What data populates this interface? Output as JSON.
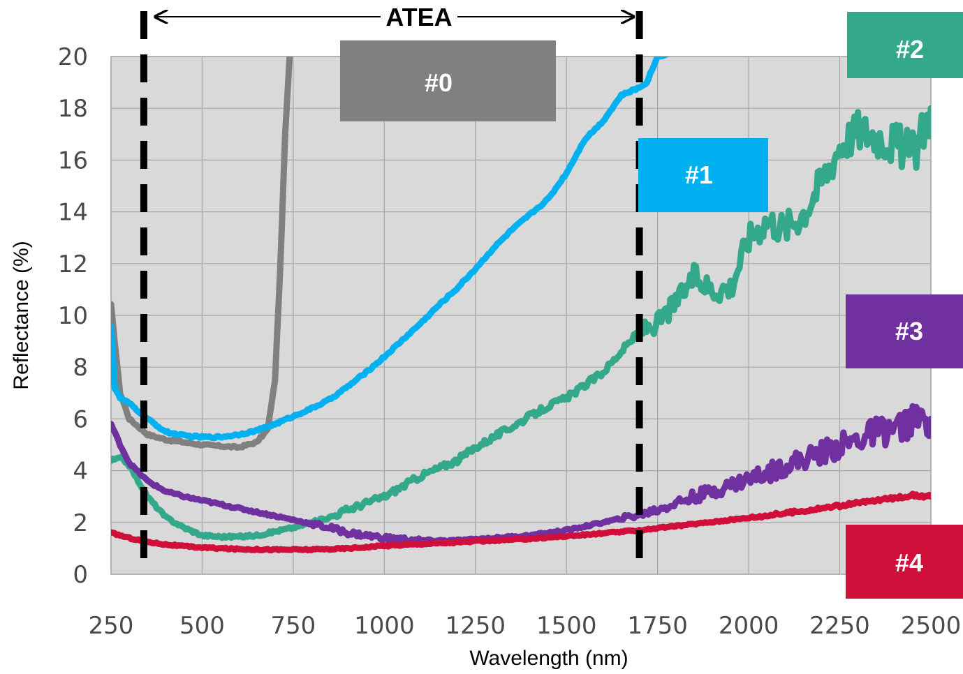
{
  "chart_data": {
    "type": "line",
    "xlabel": "Wavelength (nm)",
    "ylabel": "Reflectance (%)",
    "xlim": [
      250,
      2500
    ],
    "ylim": [
      0,
      20
    ],
    "x_ticks": [
      "250",
      "500",
      "750",
      "1000",
      "1250",
      "1500",
      "1750",
      "2000",
      "2250",
      "2500"
    ],
    "y_ticks": [
      "0",
      "2",
      "4",
      "6",
      "8",
      "10",
      "12",
      "14",
      "16",
      "18",
      "20"
    ],
    "grid": true,
    "plot_background": "#d9d9d9",
    "annotation": {
      "text": "ATEA",
      "range": [
        340,
        1700
      ]
    },
    "series": [
      {
        "name": "#0",
        "color": "#808080",
        "points": [
          [
            250,
            10.4
          ],
          [
            260,
            9.0
          ],
          [
            275,
            7.0
          ],
          [
            300,
            6.0
          ],
          [
            350,
            5.4
          ],
          [
            400,
            5.2
          ],
          [
            450,
            5.1
          ],
          [
            500,
            5.0
          ],
          [
            550,
            4.95
          ],
          [
            600,
            4.9
          ],
          [
            650,
            5.1
          ],
          [
            680,
            5.6
          ],
          [
            700,
            7.5
          ],
          [
            715,
            12.0
          ],
          [
            728,
            17.0
          ],
          [
            740,
            20.0
          ]
        ]
      },
      {
        "name": "#1",
        "color": "#00b0f0",
        "points": [
          [
            250,
            9.6
          ],
          [
            260,
            7.2
          ],
          [
            275,
            6.8
          ],
          [
            300,
            6.6
          ],
          [
            350,
            6.0
          ],
          [
            400,
            5.5
          ],
          [
            450,
            5.35
          ],
          [
            500,
            5.3
          ],
          [
            550,
            5.3
          ],
          [
            600,
            5.4
          ],
          [
            650,
            5.55
          ],
          [
            700,
            5.8
          ],
          [
            750,
            6.1
          ],
          [
            800,
            6.4
          ],
          [
            850,
            6.75
          ],
          [
            900,
            7.25
          ],
          [
            950,
            7.8
          ],
          [
            1000,
            8.4
          ],
          [
            1050,
            9.05
          ],
          [
            1100,
            9.7
          ],
          [
            1150,
            10.4
          ],
          [
            1200,
            11.05
          ],
          [
            1250,
            11.8
          ],
          [
            1300,
            12.6
          ],
          [
            1350,
            13.3
          ],
          [
            1400,
            13.9
          ],
          [
            1450,
            14.5
          ],
          [
            1500,
            15.5
          ],
          [
            1550,
            16.8
          ],
          [
            1600,
            17.5
          ],
          [
            1650,
            18.5
          ],
          [
            1700,
            18.8
          ],
          [
            1720,
            19.0
          ],
          [
            1750,
            20.0
          ],
          [
            1800,
            20.2
          ]
        ]
      },
      {
        "name": "#2",
        "color": "#34a88a",
        "points": [
          [
            250,
            4.4
          ],
          [
            280,
            4.5
          ],
          [
            300,
            4.2
          ],
          [
            350,
            3.0
          ],
          [
            400,
            2.2
          ],
          [
            450,
            1.8
          ],
          [
            500,
            1.5
          ],
          [
            550,
            1.45
          ],
          [
            600,
            1.45
          ],
          [
            650,
            1.5
          ],
          [
            700,
            1.65
          ],
          [
            750,
            1.8
          ],
          [
            800,
            2.0
          ],
          [
            850,
            2.2
          ],
          [
            900,
            2.5
          ],
          [
            950,
            2.75
          ],
          [
            1000,
            3.0
          ],
          [
            1050,
            3.4
          ],
          [
            1100,
            3.8
          ],
          [
            1150,
            4.1
          ],
          [
            1200,
            4.4
          ],
          [
            1250,
            4.9
          ],
          [
            1300,
            5.3
          ],
          [
            1350,
            5.7
          ],
          [
            1400,
            6.1
          ],
          [
            1450,
            6.5
          ],
          [
            1500,
            6.8
          ],
          [
            1550,
            7.3
          ],
          [
            1600,
            7.8
          ],
          [
            1650,
            8.6
          ],
          [
            1700,
            9.4
          ],
          [
            1750,
            9.7
          ],
          [
            1800,
            10.5
          ],
          [
            1850,
            11.5
          ],
          [
            1900,
            11.0
          ],
          [
            1950,
            11.1
          ],
          [
            2000,
            13.0
          ],
          [
            2050,
            13.7
          ],
          [
            2100,
            13.4
          ],
          [
            2150,
            14.0
          ],
          [
            2200,
            15.2
          ],
          [
            2250,
            16.6
          ],
          [
            2300,
            17.2
          ],
          [
            2350,
            17.0
          ],
          [
            2400,
            16.7
          ],
          [
            2450,
            16.2
          ],
          [
            2500,
            18.0
          ]
        ]
      },
      {
        "name": "#3",
        "color": "#7030a0",
        "points": [
          [
            250,
            5.8
          ],
          [
            275,
            5.0
          ],
          [
            300,
            4.3
          ],
          [
            350,
            3.6
          ],
          [
            400,
            3.2
          ],
          [
            450,
            3.0
          ],
          [
            500,
            2.85
          ],
          [
            550,
            2.7
          ],
          [
            600,
            2.55
          ],
          [
            650,
            2.4
          ],
          [
            700,
            2.25
          ],
          [
            750,
            2.1
          ],
          [
            800,
            1.95
          ],
          [
            850,
            1.8
          ],
          [
            900,
            1.6
          ],
          [
            950,
            1.5
          ],
          [
            1000,
            1.4
          ],
          [
            1050,
            1.35
          ],
          [
            1100,
            1.3
          ],
          [
            1150,
            1.3
          ],
          [
            1200,
            1.3
          ],
          [
            1250,
            1.35
          ],
          [
            1300,
            1.4
          ],
          [
            1350,
            1.45
          ],
          [
            1400,
            1.5
          ],
          [
            1450,
            1.6
          ],
          [
            1500,
            1.7
          ],
          [
            1550,
            1.85
          ],
          [
            1600,
            2.0
          ],
          [
            1650,
            2.15
          ],
          [
            1700,
            2.3
          ],
          [
            1750,
            2.5
          ],
          [
            1800,
            2.75
          ],
          [
            1850,
            3.0
          ],
          [
            1900,
            3.2
          ],
          [
            1950,
            3.45
          ],
          [
            2000,
            3.7
          ],
          [
            2050,
            3.9
          ],
          [
            2100,
            4.2
          ],
          [
            2150,
            4.45
          ],
          [
            2200,
            4.7
          ],
          [
            2250,
            4.95
          ],
          [
            2300,
            5.2
          ],
          [
            2350,
            5.5
          ],
          [
            2400,
            5.6
          ],
          [
            2450,
            5.9
          ],
          [
            2500,
            6.0
          ]
        ]
      },
      {
        "name": "#4",
        "color": "#d0103a",
        "points": [
          [
            250,
            1.6
          ],
          [
            300,
            1.4
          ],
          [
            350,
            1.25
          ],
          [
            400,
            1.15
          ],
          [
            450,
            1.08
          ],
          [
            500,
            1.03
          ],
          [
            550,
            1.0
          ],
          [
            600,
            0.97
          ],
          [
            650,
            0.96
          ],
          [
            700,
            0.95
          ],
          [
            750,
            0.95
          ],
          [
            800,
            0.95
          ],
          [
            850,
            0.97
          ],
          [
            900,
            1.0
          ],
          [
            950,
            1.05
          ],
          [
            1000,
            1.1
          ],
          [
            1050,
            1.13
          ],
          [
            1100,
            1.17
          ],
          [
            1150,
            1.2
          ],
          [
            1200,
            1.23
          ],
          [
            1250,
            1.27
          ],
          [
            1300,
            1.3
          ],
          [
            1350,
            1.33
          ],
          [
            1400,
            1.37
          ],
          [
            1450,
            1.42
          ],
          [
            1500,
            1.47
          ],
          [
            1550,
            1.52
          ],
          [
            1600,
            1.58
          ],
          [
            1650,
            1.64
          ],
          [
            1700,
            1.7
          ],
          [
            1750,
            1.78
          ],
          [
            1800,
            1.86
          ],
          [
            1850,
            1.94
          ],
          [
            1900,
            2.02
          ],
          [
            1950,
            2.1
          ],
          [
            2000,
            2.18
          ],
          [
            2050,
            2.27
          ],
          [
            2100,
            2.36
          ],
          [
            2150,
            2.45
          ],
          [
            2200,
            2.55
          ],
          [
            2250,
            2.65
          ],
          [
            2300,
            2.75
          ],
          [
            2350,
            2.85
          ],
          [
            2400,
            2.95
          ],
          [
            2450,
            3.05
          ],
          [
            2500,
            3.0
          ]
        ]
      }
    ]
  }
}
